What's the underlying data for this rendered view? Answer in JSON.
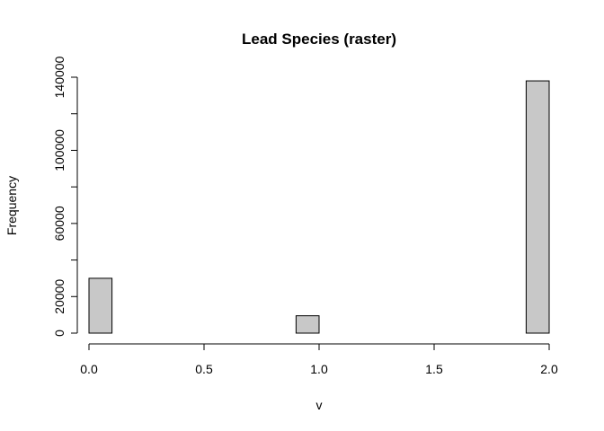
{
  "chart_data": {
    "type": "bar",
    "title": "Lead Species (raster)",
    "xlabel": "v",
    "ylabel": "Frequency",
    "bins": [
      {
        "x0": 0.0,
        "x1": 0.1,
        "count": 30000
      },
      {
        "x0": 0.1,
        "x1": 0.2,
        "count": 0
      },
      {
        "x0": 0.2,
        "x1": 0.3,
        "count": 0
      },
      {
        "x0": 0.3,
        "x1": 0.4,
        "count": 0
      },
      {
        "x0": 0.4,
        "x1": 0.5,
        "count": 0
      },
      {
        "x0": 0.5,
        "x1": 0.6,
        "count": 0
      },
      {
        "x0": 0.6,
        "x1": 0.7,
        "count": 0
      },
      {
        "x0": 0.7,
        "x1": 0.8,
        "count": 0
      },
      {
        "x0": 0.8,
        "x1": 0.9,
        "count": 0
      },
      {
        "x0": 0.9,
        "x1": 1.0,
        "count": 9500
      },
      {
        "x0": 1.0,
        "x1": 1.1,
        "count": 0
      },
      {
        "x0": 1.1,
        "x1": 1.2,
        "count": 0
      },
      {
        "x0": 1.2,
        "x1": 1.3,
        "count": 0
      },
      {
        "x0": 1.3,
        "x1": 1.4,
        "count": 0
      },
      {
        "x0": 1.4,
        "x1": 1.5,
        "count": 0
      },
      {
        "x0": 1.5,
        "x1": 1.6,
        "count": 0
      },
      {
        "x0": 1.6,
        "x1": 1.7,
        "count": 0
      },
      {
        "x0": 1.7,
        "x1": 1.8,
        "count": 0
      },
      {
        "x0": 1.8,
        "x1": 1.9,
        "count": 0
      },
      {
        "x0": 1.9,
        "x1": 2.0,
        "count": 138000
      }
    ],
    "xlim": [
      0,
      2
    ],
    "ylim": [
      0,
      140000
    ],
    "x_ticks": [
      0.0,
      0.5,
      1.0,
      1.5,
      2.0
    ],
    "x_tick_labels": [
      "0.0",
      "0.5",
      "1.0",
      "1.5",
      "2.0"
    ],
    "y_ticks": [
      0,
      20000,
      40000,
      60000,
      80000,
      100000,
      120000,
      140000
    ],
    "y_tick_labels": [
      "0",
      "20000",
      "",
      "60000",
      "",
      "100000",
      "",
      "140000"
    ],
    "grid": false
  }
}
